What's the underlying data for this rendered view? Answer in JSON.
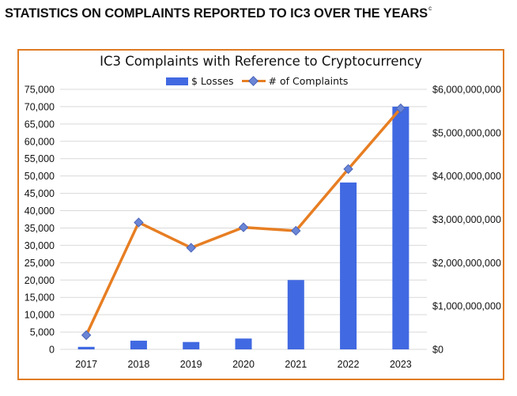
{
  "page": {
    "heading": "STATISTICS ON COMPLAINTS REPORTED TO IC3 OVER THE YEARS",
    "heading_superscript": "c"
  },
  "colors": {
    "bars": "#4169e1",
    "line": "#e77e22",
    "markers": "#6b86d6",
    "frame": "#e07b22",
    "grid": "#d9d9d9"
  },
  "chart_data": {
    "type": "bar",
    "title": "IC3 Complaints with Reference to Cryptocurrency",
    "categories": [
      "2017",
      "2018",
      "2019",
      "2020",
      "2021",
      "2022",
      "2023"
    ],
    "series": [
      {
        "name": "$ Losses",
        "kind": "bar",
        "axis": "right",
        "values": [
          58000000,
          200000000,
          170000000,
          250000000,
          1600000000,
          3850000000,
          5600000000
        ]
      },
      {
        "name": "# of Complaints",
        "kind": "line",
        "axis": "left",
        "marker": "diamond",
        "values": [
          4100,
          36600,
          29300,
          35200,
          34200,
          52000,
          69500
        ]
      }
    ],
    "y_left": {
      "range": [
        0,
        75000
      ],
      "ticks": [
        "0",
        "5,000",
        "10,000",
        "15,000",
        "20,000",
        "25,000",
        "30,000",
        "35,000",
        "40,000",
        "45,000",
        "50,000",
        "55,000",
        "60,000",
        "65,000",
        "70,000",
        "75,000"
      ]
    },
    "y_right": {
      "range": [
        0,
        6000000000
      ],
      "ticks": [
        "$0",
        "$1,000,000,000",
        "$2,000,000,000",
        "$3,000,000,000",
        "$4,000,000,000",
        "$5,000,000,000",
        "$6,000,000,000"
      ]
    },
    "grid": "horizontal",
    "legend": "top-center"
  }
}
